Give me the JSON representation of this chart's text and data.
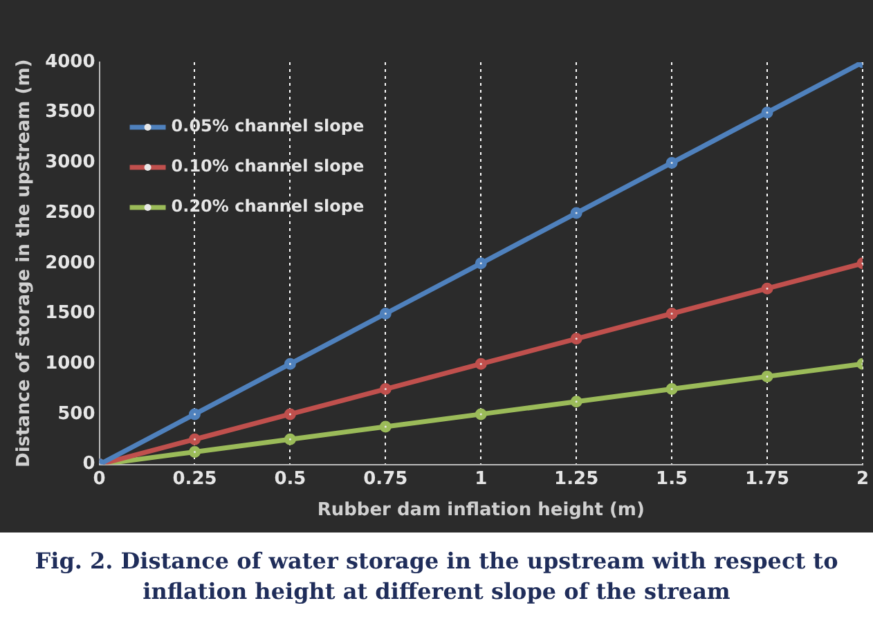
{
  "chart_data": {
    "type": "line",
    "title": "Fig. 2. Distance of water storage in the upstream with respect to inflation height at different slope of the stream",
    "xlabel": "Rubber dam inflation height (m)",
    "ylabel": "Distance of storage in the upstream (m)",
    "x": [
      0,
      0.25,
      0.5,
      0.75,
      1,
      1.25,
      1.5,
      1.75,
      2
    ],
    "series": [
      {
        "name": "0.05% channel slope",
        "color": "#4f81bd",
        "values": [
          0,
          500,
          1000,
          1500,
          2000,
          2500,
          3000,
          3500,
          4000
        ]
      },
      {
        "name": "0.10% channel slope",
        "color": "#c0504d",
        "values": [
          0,
          250,
          500,
          750,
          1000,
          1250,
          1500,
          1750,
          2000
        ]
      },
      {
        "name": "0.20% channel slope",
        "color": "#9bbb59",
        "values": [
          0,
          125,
          250,
          375,
          500,
          625,
          750,
          875,
          1000
        ]
      }
    ],
    "xlim": [
      0,
      2
    ],
    "xticks": [
      0,
      0.25,
      0.5,
      0.75,
      1,
      1.25,
      1.5,
      1.75,
      2
    ],
    "ylim": [
      0,
      4000
    ],
    "yticks": [
      0,
      500,
      1000,
      1500,
      2000,
      2500,
      3000,
      3500,
      4000
    ],
    "grid": "x",
    "legend": "top left",
    "marker": "circle",
    "line_style": "solid"
  }
}
